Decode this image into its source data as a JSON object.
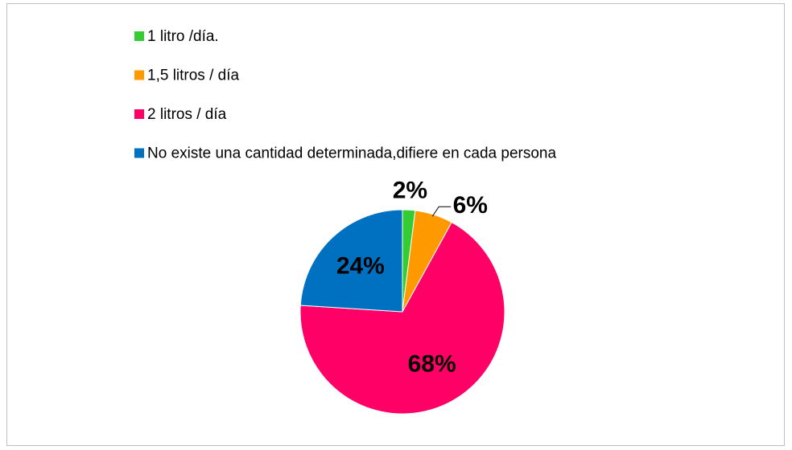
{
  "chart_data": {
    "type": "pie",
    "categories": [
      "1 litro /día.",
      "1,5 litros / día",
      "2 litros / día",
      "No existe una cantidad determinada,difiere en cada persona"
    ],
    "values": [
      2,
      6,
      68,
      24
    ],
    "value_labels": [
      "2%",
      "6%",
      "68%",
      "24%"
    ],
    "colors": [
      "#33cc33",
      "#ff9900",
      "#ff0066",
      "#0070c0"
    ],
    "legend": "top"
  }
}
